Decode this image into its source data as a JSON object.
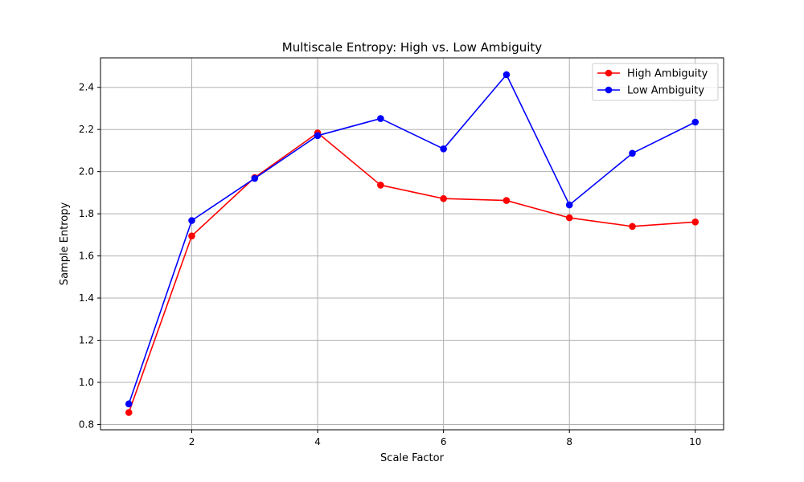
{
  "chart_data": {
    "type": "line",
    "title": "Multiscale Entropy: High vs. Low Ambiguity",
    "xlabel": "Scale Factor",
    "ylabel": "Sample Entropy",
    "x": [
      1,
      2,
      3,
      4,
      5,
      6,
      7,
      8,
      9,
      10
    ],
    "xlim": [
      0.55,
      10.45
    ],
    "ylim": [
      0.775,
      2.54
    ],
    "xticks": [
      2,
      4,
      6,
      8,
      10
    ],
    "xtick_labels": [
      "2",
      "4",
      "6",
      "8",
      "10"
    ],
    "yticks": [
      0.8,
      1.0,
      1.2,
      1.4,
      1.6,
      1.8,
      2.0,
      2.2,
      2.4
    ],
    "ytick_labels": [
      "0.8",
      "1.0",
      "1.2",
      "1.4",
      "1.6",
      "1.8",
      "2.0",
      "2.2",
      "2.4"
    ],
    "grid": true,
    "legend_position": "upper-right",
    "series": [
      {
        "name": "High Ambiguity",
        "color": "#ff0000",
        "marker": "circle",
        "values": [
          0.857,
          1.695,
          1.972,
          2.184,
          1.936,
          1.872,
          1.863,
          1.781,
          1.74,
          1.761
        ]
      },
      {
        "name": "Low Ambiguity",
        "color": "#0000ff",
        "marker": "circle",
        "values": [
          0.898,
          1.768,
          1.968,
          2.171,
          2.252,
          2.108,
          2.46,
          1.842,
          2.087,
          2.235
        ]
      }
    ]
  }
}
